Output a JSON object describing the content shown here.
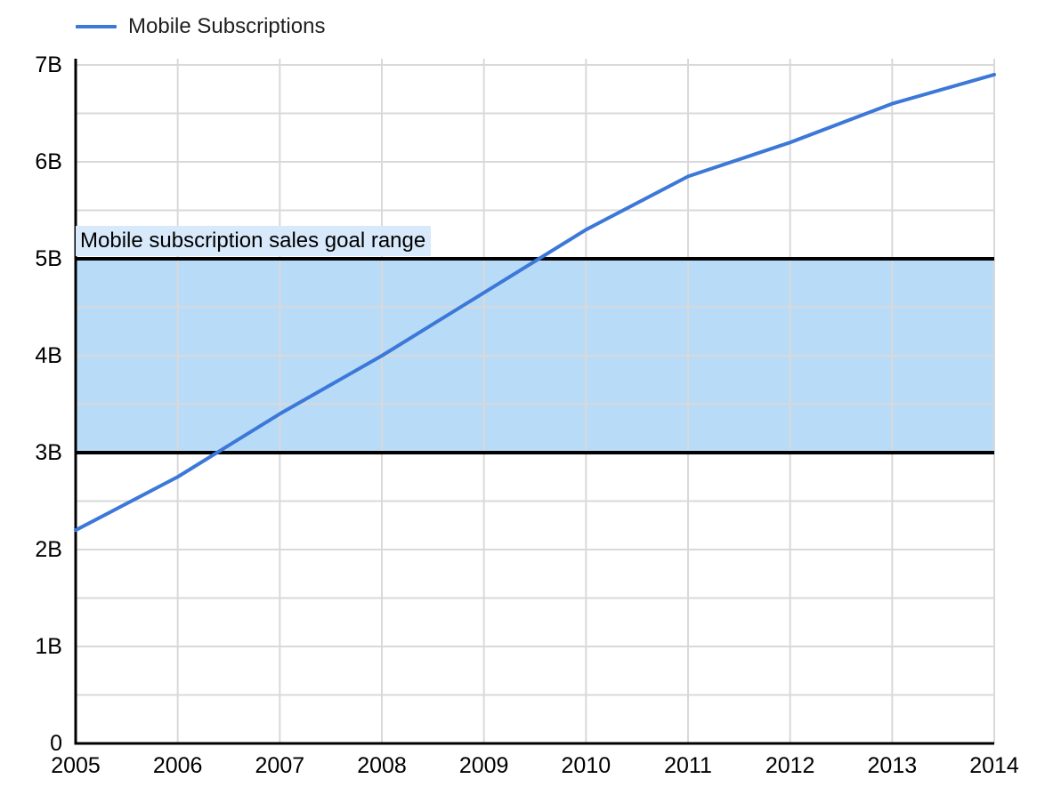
{
  "legend": {
    "label": "Mobile Subscriptions"
  },
  "colors": {
    "line": "#3c78d8",
    "band_fill": "#b8dbf8",
    "band_border": "#000000",
    "band_label_bg": "#d8e9fb",
    "grid": "#d9d9d9",
    "axis": "#000000",
    "text": "#000000"
  },
  "chart_data": {
    "type": "line",
    "title": "",
    "xlabel": "",
    "ylabel": "",
    "x": [
      2005,
      2006,
      2007,
      2008,
      2009,
      2010,
      2011,
      2012,
      2013,
      2014
    ],
    "xtick_labels": [
      "2005",
      "2006",
      "2007",
      "2008",
      "2009",
      "2010",
      "2011",
      "2012",
      "2013",
      "2014"
    ],
    "series": [
      {
        "name": "Mobile Subscriptions",
        "values": [
          2.2,
          2.75,
          3.4,
          4.0,
          4.65,
          5.3,
          5.85,
          6.2,
          6.6,
          6.9
        ]
      }
    ],
    "ylim": [
      0,
      7
    ],
    "ytick_values": [
      0,
      1,
      2,
      3,
      4,
      5,
      6,
      7
    ],
    "ytick_labels": [
      "0",
      "1B",
      "2B",
      "3B",
      "4B",
      "5B",
      "6B",
      "7B"
    ],
    "minor_y_grid_step": 0.5,
    "grid": true,
    "legend_position": "top-left",
    "band": {
      "label": "Mobile subscription sales goal range",
      "from": 3,
      "to": 5
    }
  }
}
